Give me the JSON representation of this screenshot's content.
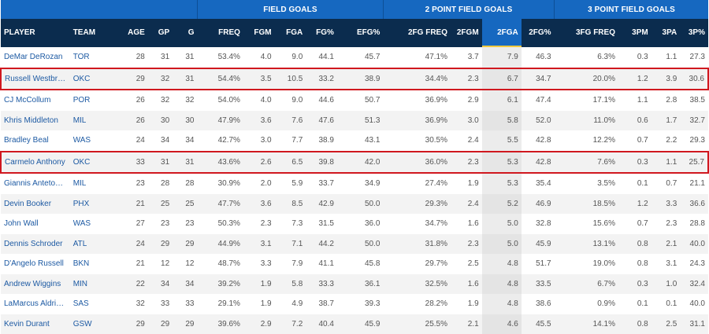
{
  "table": {
    "group_headers": [
      {
        "label": ""
      },
      {
        "label": "FIELD GOALS"
      },
      {
        "label": "2 POINT FIELD GOALS"
      },
      {
        "label": "3 POINT FIELD GOALS"
      }
    ],
    "columns": [
      "PLAYER",
      "TEAM",
      "AGE",
      "GP",
      "G",
      "FREQ",
      "FGM",
      "FGA",
      "FG%",
      "EFG%",
      "2FG FREQ",
      "2FGM",
      "2FGA",
      "2FG%",
      "3FG FREQ",
      "3PM",
      "3PA",
      "3P%"
    ],
    "sorted_column": "2FGA",
    "highlight_color": "#d0181f",
    "header_colors": {
      "group": "#1668c0",
      "columns": "#0b2c4e",
      "sort_underline": "#f0c940"
    },
    "rows": [
      {
        "player": "DeMar DeRozan",
        "team": "TOR",
        "age": "28",
        "gp": "31",
        "g": "31",
        "freq": "53.4%",
        "fgm": "4.0",
        "fga": "9.0",
        "fgp": "44.1",
        "efg": "45.7",
        "freq2": "47.1%",
        "fgm2": "3.7",
        "fga2": "7.9",
        "fgp2": "46.3",
        "freq3": "6.3%",
        "pm3": "0.3",
        "pa3": "1.1",
        "pp3": "27.3",
        "highlighted": false
      },
      {
        "player": "Russell Westbrook",
        "team": "OKC",
        "age": "29",
        "gp": "32",
        "g": "31",
        "freq": "54.4%",
        "fgm": "3.5",
        "fga": "10.5",
        "fgp": "33.2",
        "efg": "38.9",
        "freq2": "34.4%",
        "fgm2": "2.3",
        "fga2": "6.7",
        "fgp2": "34.7",
        "freq3": "20.0%",
        "pm3": "1.2",
        "pa3": "3.9",
        "pp3": "30.6",
        "highlighted": true
      },
      {
        "player": "CJ McCollum",
        "team": "POR",
        "age": "26",
        "gp": "32",
        "g": "32",
        "freq": "54.0%",
        "fgm": "4.0",
        "fga": "9.0",
        "fgp": "44.6",
        "efg": "50.7",
        "freq2": "36.9%",
        "fgm2": "2.9",
        "fga2": "6.1",
        "fgp2": "47.4",
        "freq3": "17.1%",
        "pm3": "1.1",
        "pa3": "2.8",
        "pp3": "38.5",
        "highlighted": false
      },
      {
        "player": "Khris Middleton",
        "team": "MIL",
        "age": "26",
        "gp": "30",
        "g": "30",
        "freq": "47.9%",
        "fgm": "3.6",
        "fga": "7.6",
        "fgp": "47.6",
        "efg": "51.3",
        "freq2": "36.9%",
        "fgm2": "3.0",
        "fga2": "5.8",
        "fgp2": "52.0",
        "freq3": "11.0%",
        "pm3": "0.6",
        "pa3": "1.7",
        "pp3": "32.7",
        "highlighted": false
      },
      {
        "player": "Bradley Beal",
        "team": "WAS",
        "age": "24",
        "gp": "34",
        "g": "34",
        "freq": "42.7%",
        "fgm": "3.0",
        "fga": "7.7",
        "fgp": "38.9",
        "efg": "43.1",
        "freq2": "30.5%",
        "fgm2": "2.4",
        "fga2": "5.5",
        "fgp2": "42.8",
        "freq3": "12.2%",
        "pm3": "0.7",
        "pa3": "2.2",
        "pp3": "29.3",
        "highlighted": false
      },
      {
        "player": "Carmelo Anthony",
        "team": "OKC",
        "age": "33",
        "gp": "31",
        "g": "31",
        "freq": "43.6%",
        "fgm": "2.6",
        "fga": "6.5",
        "fgp": "39.8",
        "efg": "42.0",
        "freq2": "36.0%",
        "fgm2": "2.3",
        "fga2": "5.3",
        "fgp2": "42.8",
        "freq3": "7.6%",
        "pm3": "0.3",
        "pa3": "1.1",
        "pp3": "25.7",
        "highlighted": true
      },
      {
        "player": "Giannis Antetoko...",
        "team": "MIL",
        "age": "23",
        "gp": "28",
        "g": "28",
        "freq": "30.9%",
        "fgm": "2.0",
        "fga": "5.9",
        "fgp": "33.7",
        "efg": "34.9",
        "freq2": "27.4%",
        "fgm2": "1.9",
        "fga2": "5.3",
        "fgp2": "35.4",
        "freq3": "3.5%",
        "pm3": "0.1",
        "pa3": "0.7",
        "pp3": "21.1",
        "highlighted": false
      },
      {
        "player": "Devin Booker",
        "team": "PHX",
        "age": "21",
        "gp": "25",
        "g": "25",
        "freq": "47.7%",
        "fgm": "3.6",
        "fga": "8.5",
        "fgp": "42.9",
        "efg": "50.0",
        "freq2": "29.3%",
        "fgm2": "2.4",
        "fga2": "5.2",
        "fgp2": "46.9",
        "freq3": "18.5%",
        "pm3": "1.2",
        "pa3": "3.3",
        "pp3": "36.6",
        "highlighted": false
      },
      {
        "player": "John Wall",
        "team": "WAS",
        "age": "27",
        "gp": "23",
        "g": "23",
        "freq": "50.3%",
        "fgm": "2.3",
        "fga": "7.3",
        "fgp": "31.5",
        "efg": "36.0",
        "freq2": "34.7%",
        "fgm2": "1.6",
        "fga2": "5.0",
        "fgp2": "32.8",
        "freq3": "15.6%",
        "pm3": "0.7",
        "pa3": "2.3",
        "pp3": "28.8",
        "highlighted": false
      },
      {
        "player": "Dennis Schroder",
        "team": "ATL",
        "age": "24",
        "gp": "29",
        "g": "29",
        "freq": "44.9%",
        "fgm": "3.1",
        "fga": "7.1",
        "fgp": "44.2",
        "efg": "50.0",
        "freq2": "31.8%",
        "fgm2": "2.3",
        "fga2": "5.0",
        "fgp2": "45.9",
        "freq3": "13.1%",
        "pm3": "0.8",
        "pa3": "2.1",
        "pp3": "40.0",
        "highlighted": false
      },
      {
        "player": "D'Angelo Russell",
        "team": "BKN",
        "age": "21",
        "gp": "12",
        "g": "12",
        "freq": "48.7%",
        "fgm": "3.3",
        "fga": "7.9",
        "fgp": "41.1",
        "efg": "45.8",
        "freq2": "29.7%",
        "fgm2": "2.5",
        "fga2": "4.8",
        "fgp2": "51.7",
        "freq3": "19.0%",
        "pm3": "0.8",
        "pa3": "3.1",
        "pp3": "24.3",
        "highlighted": false
      },
      {
        "player": "Andrew Wiggins",
        "team": "MIN",
        "age": "22",
        "gp": "34",
        "g": "34",
        "freq": "39.2%",
        "fgm": "1.9",
        "fga": "5.8",
        "fgp": "33.3",
        "efg": "36.1",
        "freq2": "32.5%",
        "fgm2": "1.6",
        "fga2": "4.8",
        "fgp2": "33.5",
        "freq3": "6.7%",
        "pm3": "0.3",
        "pa3": "1.0",
        "pp3": "32.4",
        "highlighted": false
      },
      {
        "player": "LaMarcus Aldridge",
        "team": "SAS",
        "age": "32",
        "gp": "33",
        "g": "33",
        "freq": "29.1%",
        "fgm": "1.9",
        "fga": "4.9",
        "fgp": "38.7",
        "efg": "39.3",
        "freq2": "28.2%",
        "fgm2": "1.9",
        "fga2": "4.8",
        "fgp2": "38.6",
        "freq3": "0.9%",
        "pm3": "0.1",
        "pa3": "0.1",
        "pp3": "40.0",
        "highlighted": false
      },
      {
        "player": "Kevin Durant",
        "team": "GSW",
        "age": "29",
        "gp": "29",
        "g": "29",
        "freq": "39.6%",
        "fgm": "2.9",
        "fga": "7.2",
        "fgp": "40.4",
        "efg": "45.9",
        "freq2": "25.5%",
        "fgm2": "2.1",
        "fga2": "4.6",
        "fgp2": "45.5",
        "freq3": "14.1%",
        "pm3": "0.8",
        "pa3": "2.5",
        "pp3": "31.1",
        "highlighted": false
      }
    ]
  }
}
